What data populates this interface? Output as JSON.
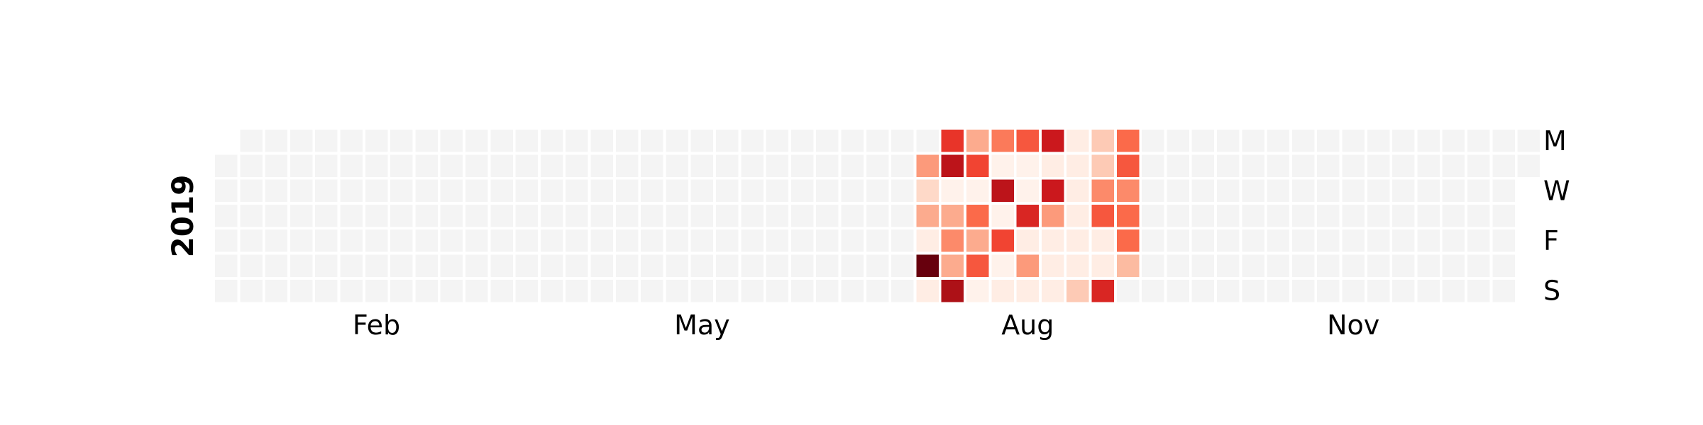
{
  "chart_data": {
    "type": "heatmap",
    "subtype": "calendar",
    "year": "2019",
    "month_labels": [
      "Feb",
      "May",
      "Aug",
      "Nov"
    ],
    "weekday_labels": [
      "M",
      "W",
      "F",
      "S"
    ],
    "grid": false,
    "legend": "none",
    "colormap": "Reds",
    "value_range": [
      0,
      1
    ],
    "empty_color": "#f4f4f4",
    "active_weeks": [
      {
        "week": 28,
        "start_date": "2019-07-08",
        "values": [
          null,
          0.35,
          0.15,
          0.3,
          0.05,
          1.0,
          0.05
        ]
      },
      {
        "week": 29,
        "start_date": "2019-07-15",
        "values": [
          0.65,
          0.8,
          0.02,
          0.3,
          0.4,
          0.3,
          0.85
        ]
      },
      {
        "week": 30,
        "start_date": "2019-07-22",
        "values": [
          0.3,
          0.6,
          0.02,
          0.5,
          0.3,
          0.55,
          0.02
        ]
      },
      {
        "week": 31,
        "start_date": "2019-07-29",
        "values": [
          0.45,
          0.02,
          0.8,
          0.02,
          0.6,
          0.02,
          0.05
        ]
      },
      {
        "week": 32,
        "start_date": "2019-08-05",
        "values": [
          0.55,
          0.02,
          0.02,
          0.7,
          0.05,
          0.35,
          0.05
        ]
      },
      {
        "week": 33,
        "start_date": "2019-08-12",
        "values": [
          0.75,
          0.05,
          0.75,
          0.35,
          0.05,
          0.05,
          0.05
        ]
      },
      {
        "week": 34,
        "start_date": "2019-08-19",
        "values": [
          0.05,
          0.05,
          0.05,
          0.05,
          0.05,
          0.05,
          0.2
        ]
      },
      {
        "week": 35,
        "start_date": "2019-08-26",
        "values": [
          0.2,
          0.2,
          0.4,
          0.55,
          0.05,
          0.05,
          0.7
        ]
      },
      {
        "week": 36,
        "start_date": "2019-09-02",
        "values": [
          0.5,
          0.55,
          0.4,
          0.5,
          0.5,
          0.25,
          null
        ]
      }
    ]
  }
}
